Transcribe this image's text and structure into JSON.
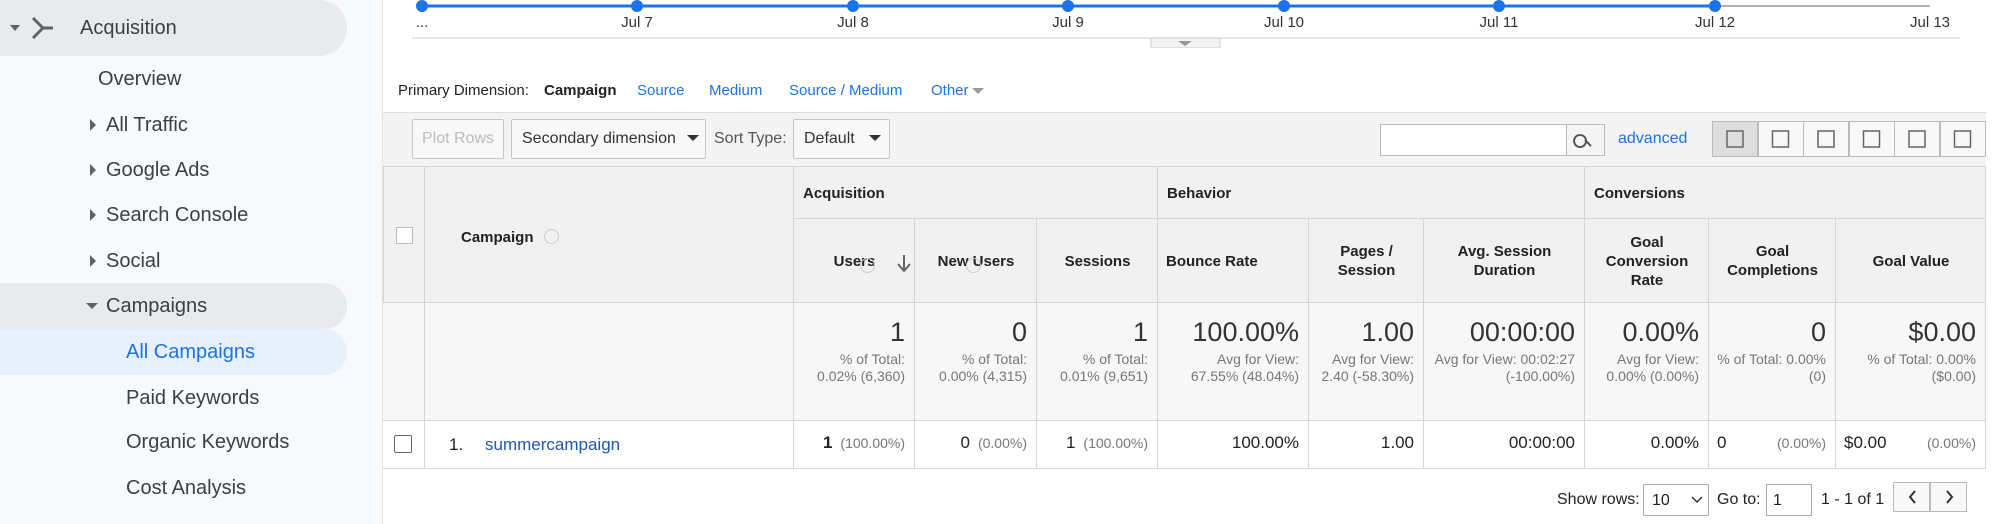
{
  "sidebar": {
    "items": [
      "Acquisition",
      "Overview",
      "All Traffic",
      "Google Ads",
      "Search Console",
      "Social",
      "Campaigns",
      "All Campaigns",
      "Paid Keywords",
      "Organic Keywords",
      "Cost Analysis"
    ]
  },
  "timeline": {
    "labels": [
      "...",
      "Jul 7",
      "Jul 8",
      "Jul 9",
      "Jul 10",
      "Jul 11",
      "Jul 12",
      "Jul 13"
    ]
  },
  "dimension": {
    "label": "Primary Dimension:",
    "options": [
      "Campaign",
      "Source",
      "Medium",
      "Source / Medium",
      "Other"
    ]
  },
  "toolbar": {
    "plot_rows": "Plot Rows",
    "secondary": "Secondary dimension",
    "sort_label": "Sort Type:",
    "sort_value": "Default",
    "advanced": "advanced"
  },
  "table": {
    "first_header": "Campaign",
    "groups": [
      "Acquisition",
      "Behavior",
      "Conversions"
    ],
    "columns": [
      "Users",
      "New Users",
      "Sessions",
      "Bounce Rate",
      "Pages / Session",
      "Avg. Session Duration",
      "Goal Conversion Rate",
      "Goal Completions",
      "Goal Value"
    ],
    "totals": [
      {
        "value": "1",
        "note": "% of Total: 0.02% (6,360)"
      },
      {
        "value": "0",
        "note": "% of Total: 0.00% (4,315)"
      },
      {
        "value": "1",
        "note": "% of Total: 0.01% (9,651)"
      },
      {
        "value": "100.00%",
        "note": "Avg for View: 67.55% (48.04%)"
      },
      {
        "value": "1.00",
        "note": "Avg for View: 2.40 (-58.30%)"
      },
      {
        "value": "00:00:00",
        "note": "Avg for View: 00:02:27 (-100.00%)"
      },
      {
        "value": "0.00%",
        "note": "Avg for View: 0.00% (0.00%)"
      },
      {
        "value": "0",
        "note": "% of Total: 0.00% (0)"
      },
      {
        "value": "$0.00",
        "note": "% of Total: 0.00% ($0.00)"
      }
    ],
    "rows": [
      {
        "index": "1.",
        "name": "summercampaign",
        "cells": [
          {
            "value": "1",
            "pct": "(100.00%)"
          },
          {
            "value": "0",
            "pct": "(0.00%)"
          },
          {
            "value": "1",
            "pct": "(100.00%)"
          },
          {
            "value": "100.00%"
          },
          {
            "value": "1.00"
          },
          {
            "value": "00:00:00"
          },
          {
            "value": "0.00%"
          },
          {
            "value": "0",
            "pct": "(0.00%)"
          },
          {
            "value": "$0.00",
            "pct": "(0.00%)"
          }
        ]
      }
    ]
  },
  "pagination": {
    "show_rows": "Show rows:",
    "rows_value": "10",
    "goto": "Go to:",
    "goto_value": "1",
    "range": "1 - 1 of 1"
  }
}
